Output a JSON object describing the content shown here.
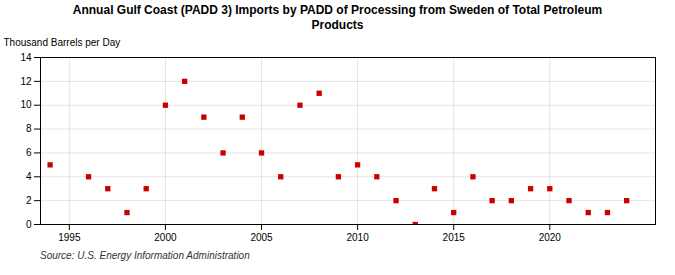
{
  "chart_data": {
    "type": "scatter",
    "title": "Annual Gulf Coast (PADD 3) Imports by PADD of Processing from Sweden of Total Petroleum\nProducts",
    "ylabel": "Thousand Barrels per Day",
    "source": "Source: U.S. Energy Information Administration",
    "color": "#cc0000",
    "marker": "square",
    "grid": true,
    "xlim": [
      1993.5,
      2025.5
    ],
    "ylim": [
      0,
      14
    ],
    "xticks": [
      1995,
      2000,
      2005,
      2010,
      2015,
      2020
    ],
    "yticks": [
      0,
      2,
      4,
      6,
      8,
      10,
      12,
      14
    ],
    "x": [
      1994,
      1996,
      1997,
      1998,
      1999,
      2000,
      2001,
      2002,
      2003,
      2004,
      2005,
      2006,
      2007,
      2008,
      2009,
      2010,
      2011,
      2012,
      2013,
      2014,
      2015,
      2016,
      2017,
      2018,
      2019,
      2020,
      2021,
      2022,
      2023,
      2024
    ],
    "values": [
      5,
      4,
      3,
      1,
      3,
      10,
      12,
      9,
      6,
      9,
      6,
      4,
      10,
      11,
      4,
      5,
      4,
      2,
      0,
      3,
      1,
      4,
      2,
      2,
      3,
      3,
      2,
      1,
      1,
      2
    ]
  }
}
